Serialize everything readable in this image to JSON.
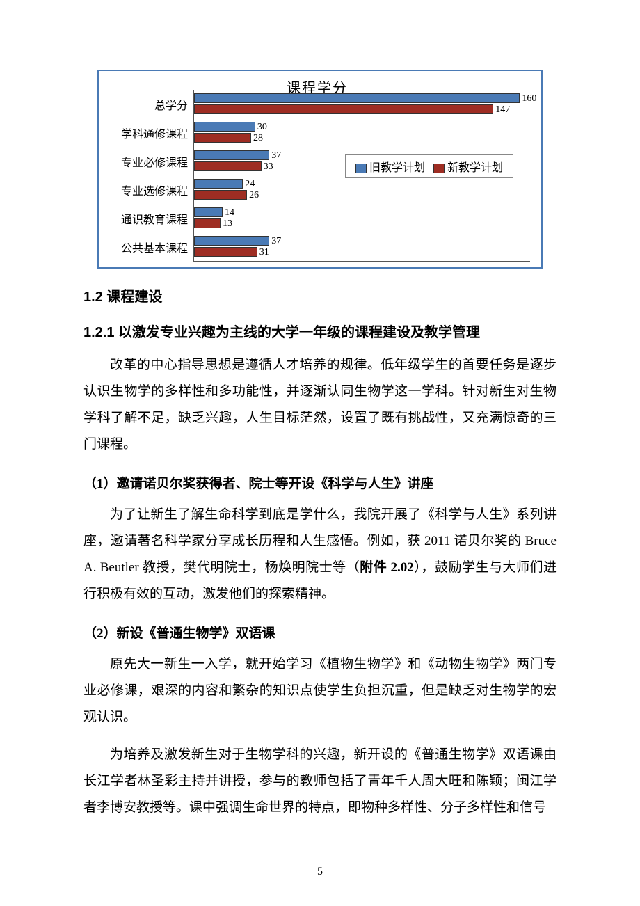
{
  "chart": {
    "type": "bar",
    "title": "课程学分",
    "title_fontsize": 20,
    "xmax": 165,
    "categories": [
      "总学分",
      "学科通修课程",
      "专业必修课程",
      "专业选修课程",
      "通识教育课程",
      "公共基本课程"
    ],
    "series": [
      {
        "name": "旧教学计划",
        "color": "#4a7ab5",
        "values": [
          160,
          30,
          37,
          24,
          14,
          37
        ]
      },
      {
        "name": "新教学计划",
        "color": "#9e2d23",
        "values": [
          147,
          28,
          33,
          26,
          13,
          31
        ]
      }
    ],
    "legend_border": "#888888",
    "axis_color": "#555555",
    "value_fontsize": 14,
    "label_fontsize": 16,
    "background_color": "#ffffff",
    "border_color": "#4a7ab5"
  },
  "headings": {
    "s12": "1.2 课程建设",
    "s121": "1.2.1 以激发专业兴趣为主线的大学一年级的课程建设及教学管理",
    "item1": "（1）邀请诺贝尔奖获得者、院士等开设《科学与人生》讲座",
    "item2": "（2）新设《普通生物学》双语课"
  },
  "paragraphs": {
    "p1": "改革的中心指导思想是遵循人才培养的规律。低年级学生的首要任务是逐步认识生物学的多样性和多功能性，并逐渐认同生物学这一学科。针对新生对生物学科了解不足，缺乏兴趣，人生目标茫然，设置了既有挑战性，又充满惊奇的三门课程。",
    "p2a": "为了让新生了解生命科学到底是学什么，我院开展了《科学与人生》系列讲座，邀请著名科学家分享成长历程和人生感悟。例如，获 2011 诺贝尔奖的 Bruce A. Beutler 教授，樊代明院士，杨焕明院士等（",
    "p2ref": "附件 2.02",
    "p2b": "），鼓励学生与大师们进行积极有效的互动，激发他们的探索精神。",
    "p3": "原先大一新生一入学，就开始学习《植物生物学》和《动物生物学》两门专业必修课，艰深的内容和繁杂的知识点使学生负担沉重，但是缺乏对生物学的宏观认识。",
    "p4": "为培养及激发新生对于生物学科的兴趣，新开设的《普通生物学》双语课由长江学者林圣彩主持并讲授，参与的教师包括了青年千人周大旺和陈颖；闽江学者李博安教授等。课中强调生命世界的特点，即物种多样性、分子多样性和信号"
  },
  "page_number": "5"
}
